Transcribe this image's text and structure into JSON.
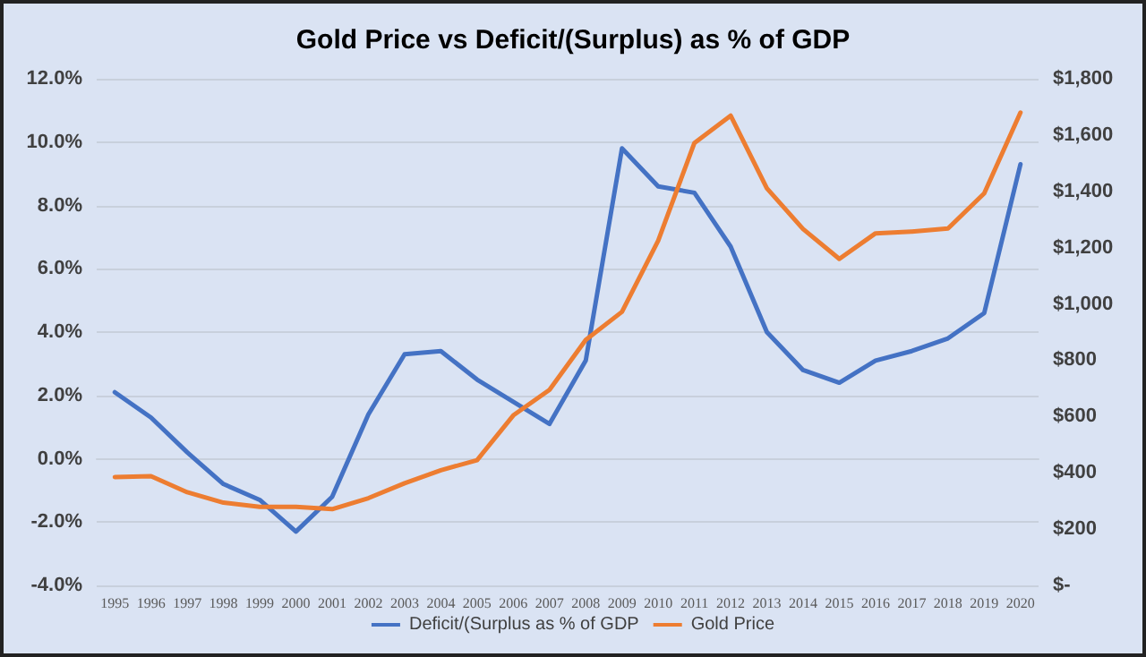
{
  "chart_data": {
    "type": "line",
    "title": "Gold Price vs Deficit/(Surplus) as % of GDP",
    "categories": [
      "1995",
      "1996",
      "1997",
      "1998",
      "1999",
      "2000",
      "2001",
      "2002",
      "2003",
      "2004",
      "2005",
      "2006",
      "2007",
      "2008",
      "2009",
      "2010",
      "2011",
      "2012",
      "2013",
      "2014",
      "2015",
      "2016",
      "2017",
      "2018",
      "2019",
      "2020"
    ],
    "series": [
      {
        "name": "Deficit/(Surplus as % of GDP",
        "color": "#4472c4",
        "values": [
          2.1,
          1.3,
          0.2,
          -0.8,
          -1.3,
          -2.3,
          -1.2,
          1.4,
          3.3,
          3.4,
          2.5,
          1.8,
          1.1,
          3.1,
          9.8,
          8.6,
          8.4,
          6.7,
          4.0,
          2.8,
          2.4,
          3.1,
          3.4,
          3.8,
          4.6,
          9.3
        ]
      },
      {
        "name": "Gold Price",
        "color": "#ed7d31",
        "axis": "y2",
        "values": [
          385,
          388,
          331,
          294,
          279,
          279,
          271,
          310,
          363,
          409,
          445,
          604,
          695,
          872,
          972,
          1225,
          1572,
          1669,
          1411,
          1266,
          1160,
          1251,
          1257,
          1268,
          1393,
          1680
        ]
      }
    ],
    "ylim": [
      -4,
      12
    ],
    "yticks": [
      {
        "value": -4,
        "label": "-4.0%"
      },
      {
        "value": -2,
        "label": "-2.0%"
      },
      {
        "value": 0,
        "label": "0.0%"
      },
      {
        "value": 2,
        "label": "2.0%"
      },
      {
        "value": 4,
        "label": "4.0%"
      },
      {
        "value": 6,
        "label": "6.0%"
      },
      {
        "value": 8,
        "label": "8.0%"
      },
      {
        "value": 10,
        "label": "10.0%"
      },
      {
        "value": 12,
        "label": "12.0%"
      }
    ],
    "y2lim": [
      0,
      1800
    ],
    "y2ticks": [
      {
        "value": 0,
        "label": "$-"
      },
      {
        "value": 200,
        "label": "$200"
      },
      {
        "value": 400,
        "label": "$400"
      },
      {
        "value": 600,
        "label": "$600"
      },
      {
        "value": 800,
        "label": "$800"
      },
      {
        "value": 1000,
        "label": "$1,000"
      },
      {
        "value": 1200,
        "label": "$1,200"
      },
      {
        "value": 1400,
        "label": "$1,400"
      },
      {
        "value": 1600,
        "label": "$1,600"
      },
      {
        "value": 1800,
        "label": "$1,800"
      }
    ],
    "grid": "y",
    "legend": "bottom",
    "marker": "none",
    "line_style": "solid"
  }
}
